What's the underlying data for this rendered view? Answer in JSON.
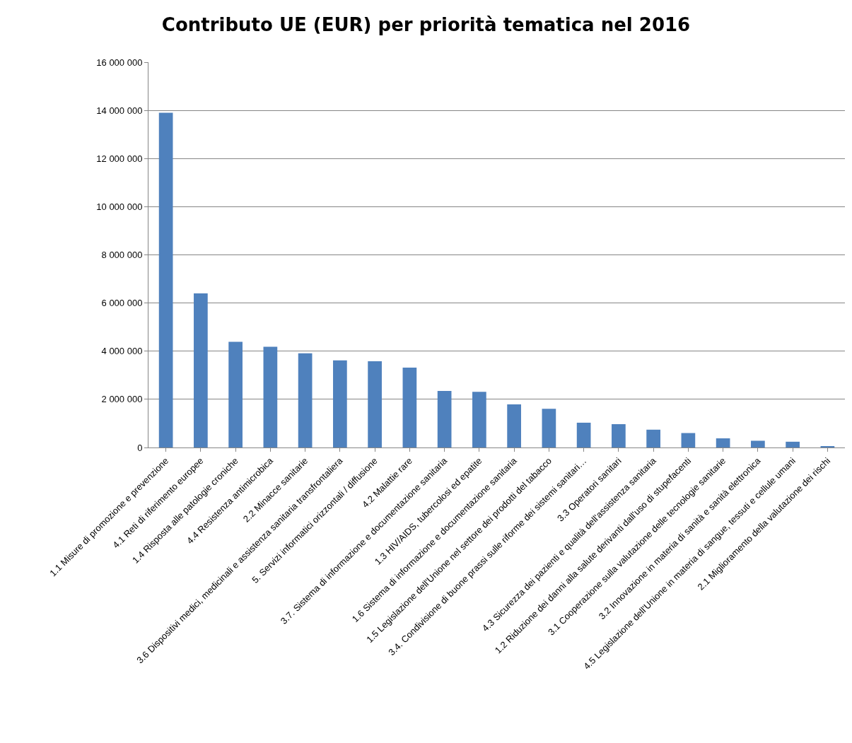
{
  "chart_data": {
    "type": "bar",
    "title": "Contributo UE (EUR) per priorità tematica nel 2016",
    "categories": [
      "1.1 Misure di promozione e prevenzione",
      "4.1 Reti di riferimento europee",
      "1.4 Risposta alle patologie croniche",
      "4.4 Resistenza antimicrobica",
      "2.2 Minacce sanitarie",
      "3.6 Dispositivi medici, medicinali e assistenza sanitaria transfrontaliera",
      "5. Servizi informatici orizzontali / diffusione",
      "4.2 Malattie rare",
      "3.7. Sistema di informazione e documentazione sanitaria",
      "1.3 HIV/AIDS, tubercolosi ed epatite",
      "1.6 Sistema di informazione e documentazione sanitaria",
      "1.5 Legislazione dell'Unione nel settore dei prodotti del tabacco",
      "3.4. Condivisione di buone prassi sulle riforme dei sistemi sanitari…",
      "3.3 Operatori sanitari",
      "4.3 Sicurezza dei pazienti e qualità dell'assistenza sanitaria",
      "1.2 Riduzione dei danni alla salute derivanti dall'uso di stupefacenti",
      "3.1 Cooperazione sulla valutazione delle tecnologie sanitarie",
      "3.2 Innovazione in materia di sanità e sanità elettronica",
      "4.5 Legislazione dell'Unione in materia di sangue, tessuti e cellule umani",
      "2.1 Miglioramento della valutazione dei rischi"
    ],
    "values": [
      13900000,
      6400000,
      4390000,
      4180000,
      3910000,
      3620000,
      3580000,
      3320000,
      2350000,
      2310000,
      1790000,
      1610000,
      1030000,
      970000,
      740000,
      600000,
      380000,
      280000,
      240000,
      40000
    ],
    "color": "#4f81bd",
    "ylim": [
      0,
      16000000
    ],
    "yticks": [
      {
        "value": 0,
        "label": "0"
      },
      {
        "value": 2000000,
        "label": "2 000 000"
      },
      {
        "value": 4000000,
        "label": "4 000 000"
      },
      {
        "value": 6000000,
        "label": "6 000 000"
      },
      {
        "value": 8000000,
        "label": "8 000 000"
      },
      {
        "value": 10000000,
        "label": "10 000 000"
      },
      {
        "value": 12000000,
        "label": "12 000 000"
      },
      {
        "value": 14000000,
        "label": "14 000 000"
      },
      {
        "value": 16000000,
        "label": "16 000 000"
      }
    ],
    "grid": "y",
    "legend": false
  }
}
